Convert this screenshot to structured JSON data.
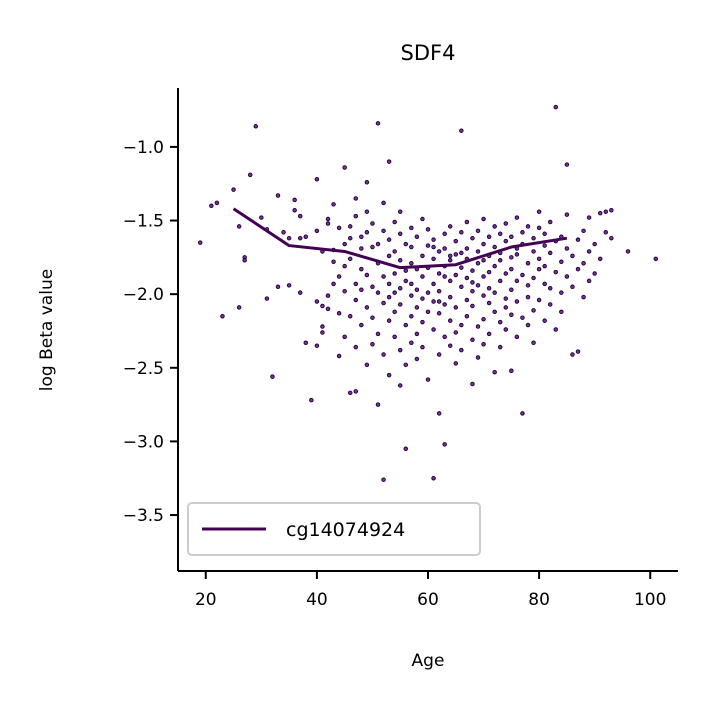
{
  "chart_data": {
    "type": "scatter",
    "title": "SDF4",
    "xlabel": "Age",
    "ylabel": "log Beta value",
    "xlim": [
      15,
      105
    ],
    "ylim": [
      -3.88,
      -0.6
    ],
    "x_ticks": [
      20,
      40,
      60,
      80,
      100
    ],
    "x_tick_labels": [
      "20",
      "40",
      "60",
      "80",
      "100"
    ],
    "y_ticks": [
      -1.0,
      -1.5,
      -2.0,
      -2.5,
      -3.0,
      -3.5
    ],
    "y_tick_labels": [
      "−1.0",
      "−1.5",
      "−2.0",
      "−2.5",
      "−3.0",
      "−3.5"
    ],
    "grid": false,
    "legend_position": "lower-left",
    "point_color": "#7b2f9e",
    "point_edge_color": "#1a0030",
    "trend_color": "#440154",
    "trend_series": {
      "name": "cg14074924",
      "x": [
        25,
        35,
        45,
        55,
        65,
        75,
        85
      ],
      "y": [
        -1.42,
        -1.67,
        -1.71,
        -1.82,
        -1.8,
        -1.68,
        -1.62
      ]
    },
    "scatter_points": [
      [
        19,
        -1.65
      ],
      [
        21,
        -1.4
      ],
      [
        22,
        -1.38
      ],
      [
        23,
        -2.15
      ],
      [
        25,
        -1.29
      ],
      [
        26,
        -1.54
      ],
      [
        26,
        -2.09
      ],
      [
        27,
        -1.75
      ],
      [
        27,
        -1.77
      ],
      [
        28,
        -1.19
      ],
      [
        29,
        -0.86
      ],
      [
        30,
        -1.48
      ],
      [
        31,
        -2.03
      ],
      [
        31,
        -1.56
      ],
      [
        32,
        -2.56
      ],
      [
        33,
        -1.95
      ],
      [
        33,
        -1.33
      ],
      [
        34,
        -1.58
      ],
      [
        35,
        -1.62
      ],
      [
        35,
        -1.94
      ],
      [
        36,
        -1.36
      ],
      [
        36,
        -1.43
      ],
      [
        37,
        -1.62
      ],
      [
        37,
        -1.99
      ],
      [
        37,
        -1.47
      ],
      [
        38,
        -1.61
      ],
      [
        38,
        -2.33
      ],
      [
        39,
        -2.72
      ],
      [
        40,
        -2.35
      ],
      [
        40,
        -2.05
      ],
      [
        40,
        -1.22
      ],
      [
        40,
        -1.57
      ],
      [
        41,
        -2.08
      ],
      [
        41,
        -2.26
      ],
      [
        41,
        -2.22
      ],
      [
        41,
        -1.71
      ],
      [
        42,
        -2.01
      ],
      [
        42,
        -1.52
      ],
      [
        42,
        -1.49
      ],
      [
        42,
        -2.1
      ],
      [
        43,
        -1.78
      ],
      [
        43,
        -1.93
      ],
      [
        43,
        -1.7
      ],
      [
        43,
        -1.39
      ],
      [
        44,
        -1.55
      ],
      [
        44,
        -2.13
      ],
      [
        44,
        -1.88
      ],
      [
        44,
        -2.42
      ],
      [
        45,
        -1.14
      ],
      [
        45,
        -1.66
      ],
      [
        45,
        -2.29
      ],
      [
        45,
        -1.81
      ],
      [
        45,
        -1.98
      ],
      [
        46,
        -2.67
      ],
      [
        46,
        -1.54
      ],
      [
        46,
        -1.76
      ],
      [
        46,
        -2.15
      ],
      [
        46,
        -1.62
      ],
      [
        47,
        -1.93
      ],
      [
        47,
        -2.36
      ],
      [
        47,
        -1.47
      ],
      [
        47,
        -2.04
      ],
      [
        47,
        -2.66
      ],
      [
        47,
        -1.35
      ],
      [
        48,
        -1.83
      ],
      [
        48,
        -1.61
      ],
      [
        48,
        -2.21
      ],
      [
        48,
        -1.69
      ],
      [
        48,
        -1.97
      ],
      [
        49,
        -2.48
      ],
      [
        49,
        -1.58
      ],
      [
        49,
        -1.44
      ],
      [
        49,
        -2.09
      ],
      [
        49,
        -1.87
      ],
      [
        49,
        -1.24
      ],
      [
        50,
        -1.68
      ],
      [
        50,
        -2.34
      ],
      [
        50,
        -1.95
      ],
      [
        50,
        -2.16
      ],
      [
        50,
        -1.52
      ],
      [
        51,
        -1.79
      ],
      [
        51,
        -2.75
      ],
      [
        51,
        -2.27
      ],
      [
        51,
        -0.84
      ],
      [
        51,
        -1.99
      ],
      [
        51,
        -1.66
      ],
      [
        52,
        -1.57
      ],
      [
        52,
        -2.06
      ],
      [
        52,
        -2.41
      ],
      [
        52,
        -1.88
      ],
      [
        52,
        -3.26
      ],
      [
        52,
        -1.38
      ],
      [
        53,
        -2.18
      ],
      [
        53,
        -1.74
      ],
      [
        53,
        -1.93
      ],
      [
        53,
        -2.55
      ],
      [
        53,
        -1.63
      ],
      [
        53,
        -2.02
      ],
      [
        54,
        -1.86
      ],
      [
        54,
        -2.29
      ],
      [
        54,
        -1.51
      ],
      [
        54,
        -1.99
      ],
      [
        54,
        -2.12
      ],
      [
        54,
        -1.71
      ],
      [
        55,
        -2.38
      ],
      [
        55,
        -1.59
      ],
      [
        55,
        -1.96
      ],
      [
        55,
        -2.62
      ],
      [
        55,
        -1.77
      ],
      [
        55,
        -2.07
      ],
      [
        55,
        -1.44
      ],
      [
        56,
        -1.84
      ],
      [
        56,
        -2.21
      ],
      [
        56,
        -3.05
      ],
      [
        56,
        -1.66
      ],
      [
        56,
        -2.48
      ],
      [
        56,
        -1.91
      ],
      [
        57,
        -2.01
      ],
      [
        57,
        -1.55
      ],
      [
        57,
        -2.33
      ],
      [
        57,
        -1.79
      ],
      [
        57,
        -2.15
      ],
      [
        57,
        -1.68
      ],
      [
        58,
        -1.97
      ],
      [
        58,
        -2.44
      ],
      [
        58,
        -1.83
      ],
      [
        58,
        -2.09
      ],
      [
        58,
        -1.61
      ],
      [
        58,
        -2.27
      ],
      [
        59,
        -1.74
      ],
      [
        59,
        -2.03
      ],
      [
        59,
        -1.49
      ],
      [
        59,
        -2.19
      ],
      [
        59,
        -1.88
      ],
      [
        59,
        -2.36
      ],
      [
        60,
        -1.99
      ],
      [
        60,
        -1.67
      ],
      [
        60,
        -2.12
      ],
      [
        60,
        -1.82
      ],
      [
        60,
        -2.58
      ],
      [
        60,
        -1.56
      ],
      [
        61,
        -2.05
      ],
      [
        61,
        -1.76
      ],
      [
        61,
        -3.25
      ],
      [
        61,
        -2.24
      ],
      [
        61,
        -1.93
      ],
      [
        61,
        -1.63
      ],
      [
        62,
        -2.41
      ],
      [
        62,
        -1.86
      ],
      [
        62,
        -2.13
      ],
      [
        62,
        -1.71
      ],
      [
        62,
        -2.81
      ],
      [
        62,
        -1.98
      ],
      [
        63,
        -1.59
      ],
      [
        63,
        -2.29
      ],
      [
        63,
        -1.81
      ],
      [
        63,
        -2.07
      ],
      [
        63,
        -3.02
      ],
      [
        63,
        -1.69
      ],
      [
        64,
        -2.18
      ],
      [
        64,
        -1.91
      ],
      [
        64,
        -1.54
      ],
      [
        64,
        -2.35
      ],
      [
        64,
        -1.77
      ],
      [
        64,
        -2.02
      ],
      [
        65,
        -1.64
      ],
      [
        65,
        -2.26
      ],
      [
        65,
        -1.87
      ],
      [
        65,
        -2.47
      ],
      [
        65,
        -1.73
      ],
      [
        65,
        -2.09
      ],
      [
        66,
        -1.95
      ],
      [
        66,
        -1.58
      ],
      [
        66,
        -2.21
      ],
      [
        66,
        -0.89
      ],
      [
        66,
        -1.82
      ],
      [
        66,
        -2.38
      ],
      [
        67,
        -1.69
      ],
      [
        67,
        -2.04
      ],
      [
        67,
        -1.51
      ],
      [
        67,
        -2.15
      ],
      [
        67,
        -1.89
      ],
      [
        67,
        -1.76
      ],
      [
        68,
        -2.31
      ],
      [
        68,
        -1.62
      ],
      [
        68,
        -1.98
      ],
      [
        68,
        -2.61
      ],
      [
        68,
        -1.84
      ],
      [
        68,
        -2.08
      ],
      [
        69,
        -1.71
      ],
      [
        69,
        -2.22
      ],
      [
        69,
        -1.57
      ],
      [
        69,
        -1.94
      ],
      [
        69,
        -2.43
      ],
      [
        69,
        -1.79
      ],
      [
        70,
        -2.01
      ],
      [
        70,
        -1.66
      ],
      [
        70,
        -2.17
      ],
      [
        70,
        -1.88
      ],
      [
        70,
        -1.49
      ],
      [
        70,
        -2.34
      ],
      [
        71,
        -1.74
      ],
      [
        71,
        -2.06
      ],
      [
        71,
        -1.61
      ],
      [
        71,
        -2.27
      ],
      [
        71,
        -1.85
      ],
      [
        71,
        -1.96
      ],
      [
        72,
        -1.68
      ],
      [
        72,
        -2.12
      ],
      [
        72,
        -1.54
      ],
      [
        72,
        -2.53
      ],
      [
        72,
        -1.81
      ],
      [
        72,
        -1.99
      ],
      [
        73,
        -1.72
      ],
      [
        73,
        -2.19
      ],
      [
        73,
        -1.59
      ],
      [
        73,
        -1.91
      ],
      [
        73,
        -2.36
      ],
      [
        73,
        -1.77
      ],
      [
        74,
        -2.03
      ],
      [
        74,
        -1.64
      ],
      [
        74,
        -2.24
      ],
      [
        74,
        -1.86
      ],
      [
        74,
        -1.52
      ],
      [
        74,
        -2.09
      ],
      [
        75,
        -1.75
      ],
      [
        75,
        -2.52
      ],
      [
        75,
        -1.97
      ],
      [
        75,
        -1.61
      ],
      [
        75,
        -2.14
      ],
      [
        75,
        -1.83
      ],
      [
        76,
        -1.69
      ],
      [
        76,
        -2.05
      ],
      [
        76,
        -1.48
      ],
      [
        76,
        -2.29
      ],
      [
        76,
        -1.91
      ],
      [
        76,
        -1.73
      ],
      [
        77,
        -2.16
      ],
      [
        77,
        -1.58
      ],
      [
        77,
        -2.81
      ],
      [
        77,
        -1.87
      ],
      [
        77,
        -1.66
      ],
      [
        78,
        -2.02
      ],
      [
        78,
        -1.79
      ],
      [
        78,
        -2.21
      ],
      [
        78,
        -1.54
      ],
      [
        78,
        -1.94
      ],
      [
        79,
        -1.71
      ],
      [
        79,
        -2.11
      ],
      [
        79,
        -1.62
      ],
      [
        79,
        -1.89
      ],
      [
        79,
        -2.33
      ],
      [
        80,
        -1.76
      ],
      [
        80,
        -1.55
      ],
      [
        80,
        -2.04
      ],
      [
        80,
        -1.83
      ],
      [
        80,
        -1.44
      ],
      [
        81,
        -1.93
      ],
      [
        81,
        -1.67
      ],
      [
        81,
        -2.18
      ],
      [
        81,
        -1.59
      ],
      [
        81,
        -1.81
      ],
      [
        82,
        -2.07
      ],
      [
        82,
        -1.72
      ],
      [
        82,
        -1.51
      ],
      [
        82,
        -1.96
      ],
      [
        83,
        -1.64
      ],
      [
        83,
        -2.24
      ],
      [
        83,
        -1.85
      ],
      [
        83,
        -0.73
      ],
      [
        84,
        -1.78
      ],
      [
        84,
        -1.99
      ],
      [
        84,
        -1.61
      ],
      [
        84,
        -2.12
      ],
      [
        85,
        -1.69
      ],
      [
        85,
        -1.88
      ],
      [
        85,
        -1.46
      ],
      [
        85,
        -1.12
      ],
      [
        86,
        -2.41
      ],
      [
        86,
        -1.74
      ],
      [
        86,
        -1.95
      ],
      [
        87,
        -2.39
      ],
      [
        87,
        -1.63
      ],
      [
        87,
        -1.83
      ],
      [
        88,
        -1.57
      ],
      [
        88,
        -2.02
      ],
      [
        88,
        -1.79
      ],
      [
        89,
        -1.71
      ],
      [
        89,
        -1.91
      ],
      [
        89,
        -1.48
      ],
      [
        90,
        -1.86
      ],
      [
        90,
        -1.66
      ],
      [
        91,
        -1.76
      ],
      [
        91,
        -1.45
      ],
      [
        92,
        -1.44
      ],
      [
        92,
        -1.58
      ],
      [
        93,
        -1.43
      ],
      [
        93,
        -1.62
      ],
      [
        96,
        -1.71
      ],
      [
        101,
        -1.76
      ],
      [
        53,
        -1.1
      ],
      [
        61,
        -1.68
      ],
      [
        64,
        -1.74
      ],
      [
        57,
        -1.93
      ],
      [
        60,
        -1.82
      ],
      [
        62,
        -2.05
      ],
      [
        66,
        -1.72
      ],
      [
        68,
        -1.92
      ],
      [
        70,
        -1.77
      ],
      [
        63,
        -1.88
      ]
    ]
  }
}
